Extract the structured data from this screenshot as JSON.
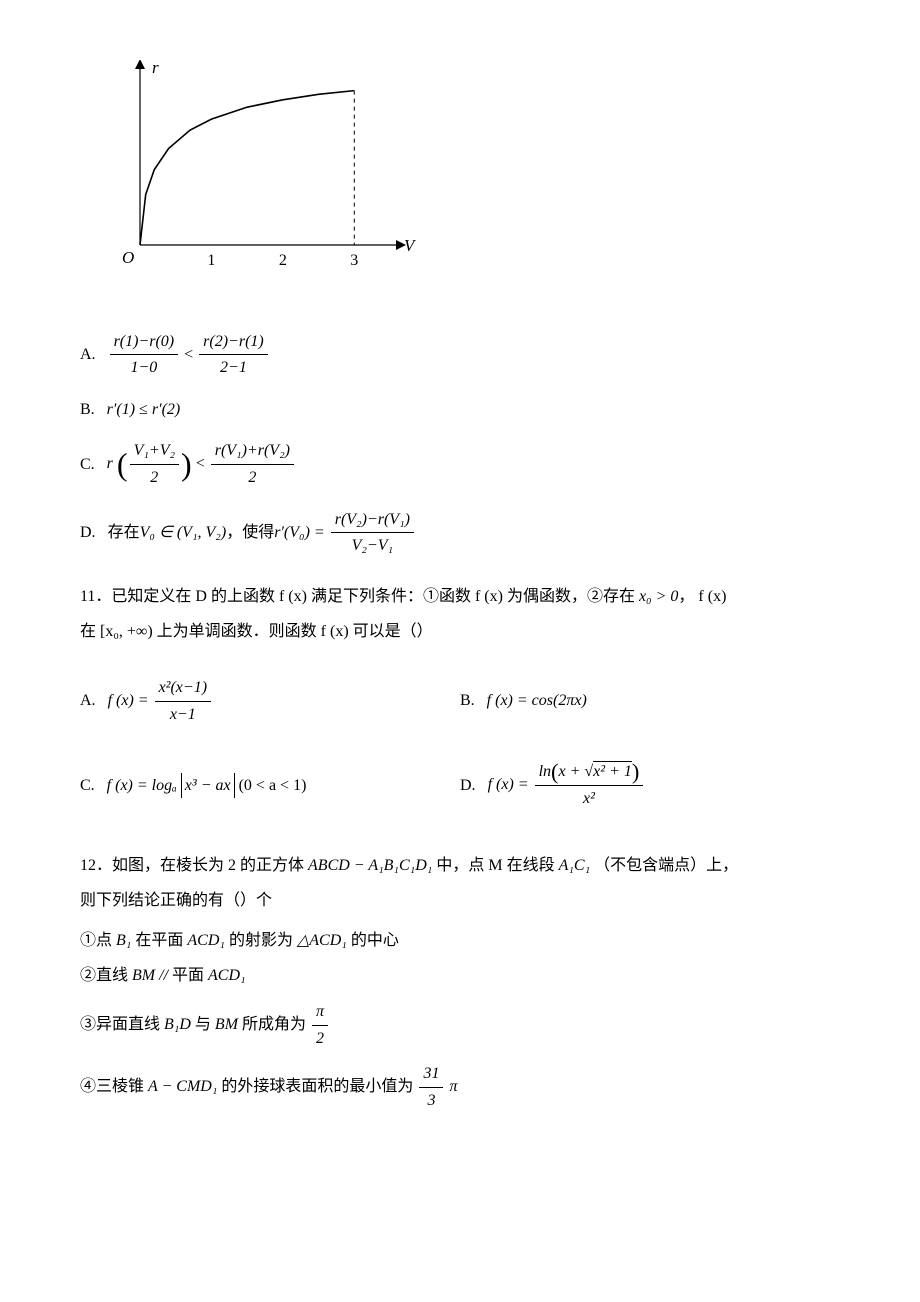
{
  "chart": {
    "type": "line",
    "y_axis_label": "r",
    "x_axis_label": "V",
    "origin_label": "O",
    "x_ticks": [
      "1",
      "2",
      "3"
    ],
    "xlim": [
      0,
      3.5
    ],
    "ylim": [
      0,
      1.85
    ],
    "curve_points_x": [
      0,
      0.08,
      0.2,
      0.4,
      0.7,
      1.0,
      1.5,
      2.0,
      2.5,
      3.0
    ],
    "curve_points_y": [
      0,
      0.55,
      0.82,
      1.05,
      1.25,
      1.37,
      1.5,
      1.58,
      1.64,
      1.68
    ],
    "dashed_x": 3.0,
    "axis_color": "#000000",
    "curve_color": "#000000",
    "dash_color": "#000000",
    "curve_width": 1.6,
    "axis_width": 1.2,
    "tick_fontsize": 16,
    "label_fontsize": 17,
    "label_fontstyle": "italic",
    "background": "#ffffff"
  },
  "q10": {
    "A": {
      "label": "A.",
      "lhs_num": "r(1)−r(0)",
      "lhs_den": "1−0",
      "op": "<",
      "rhs_num": "r(2)−r(1)",
      "rhs_den": "2−1"
    },
    "B": {
      "label": "B.",
      "expr": "r′(1) ≤ r′(2)"
    },
    "C": {
      "label": "C.",
      "lead": "r",
      "arg_num": "V₁+V₂",
      "arg_den": "2",
      "op": "<",
      "rhs_num": "r(V₁)+r(V₂)",
      "rhs_den": "2"
    },
    "D": {
      "label": "D.",
      "text_pre": "存在",
      "v0": "V₀ ∈ (V₁, V₂)",
      "text_mid": "，使得",
      "lead": "r′(V₀) =",
      "rhs_num": "r(V₂)−r(V₁)",
      "rhs_den": "V₂−V₁"
    }
  },
  "q11": {
    "num": "11．",
    "stem_a": "已知定义在 D 的上函数 f (x) 满足下列条件：①函数 f (x) 为偶函数，②存在",
    "stem_b": "x₀ > 0",
    "stem_c": "， f (x)",
    "stem_d": "在 [x₀, +∞) 上为单调函数．则函数 f (x) 可以是（）",
    "A": {
      "label": "A.",
      "lead": "f (x) =",
      "num": "x²(x−1)",
      "den": "x−1"
    },
    "B": {
      "label": "B.",
      "expr": "f (x) = cos(2πx)"
    },
    "C": {
      "label": "C.",
      "lead": "f (x) = logₐ",
      "abs": "x³ − ax",
      "tail": "(0  < a < 1)"
    },
    "D": {
      "label": "D.",
      "lead": "f (x) =",
      "num_a": "ln",
      "num_b": "x + ",
      "num_sqrt": "x² + 1",
      "den": "x²"
    }
  },
  "q12": {
    "num": "12．",
    "stem_a": "如图，在棱长为 2 的正方体",
    "cube": "ABCD − A₁B₁C₁D₁",
    "stem_b": "中，点 M 在线段",
    "seg": "A₁C₁",
    "stem_c": "（不包含端点）上，",
    "stem_d": "则下列结论正确的有（）个",
    "s1a": "①点",
    "s1b": "B₁",
    "s1c": "在平面",
    "s1d": "ACD₁",
    "s1e": "的射影为",
    "s1f": "△ACD₁",
    "s1g": "的中心",
    "s2a": "②直线",
    "s2b": "BM  // ",
    "s2c": "平面",
    "s2d": "ACD₁",
    "s3a": "③异面直线",
    "s3b": "B₁D",
    "s3c": "与",
    "s3d": "BM",
    "s3e": "所成角为",
    "s3_num": "π",
    "s3_den": "2",
    "s4a": "④三棱锥",
    "s4b": "A − CMD₁",
    "s4c": "的外接球表面积的最小值为",
    "s4_num": "31",
    "s4_den": "3",
    "s4_tail": "π"
  }
}
